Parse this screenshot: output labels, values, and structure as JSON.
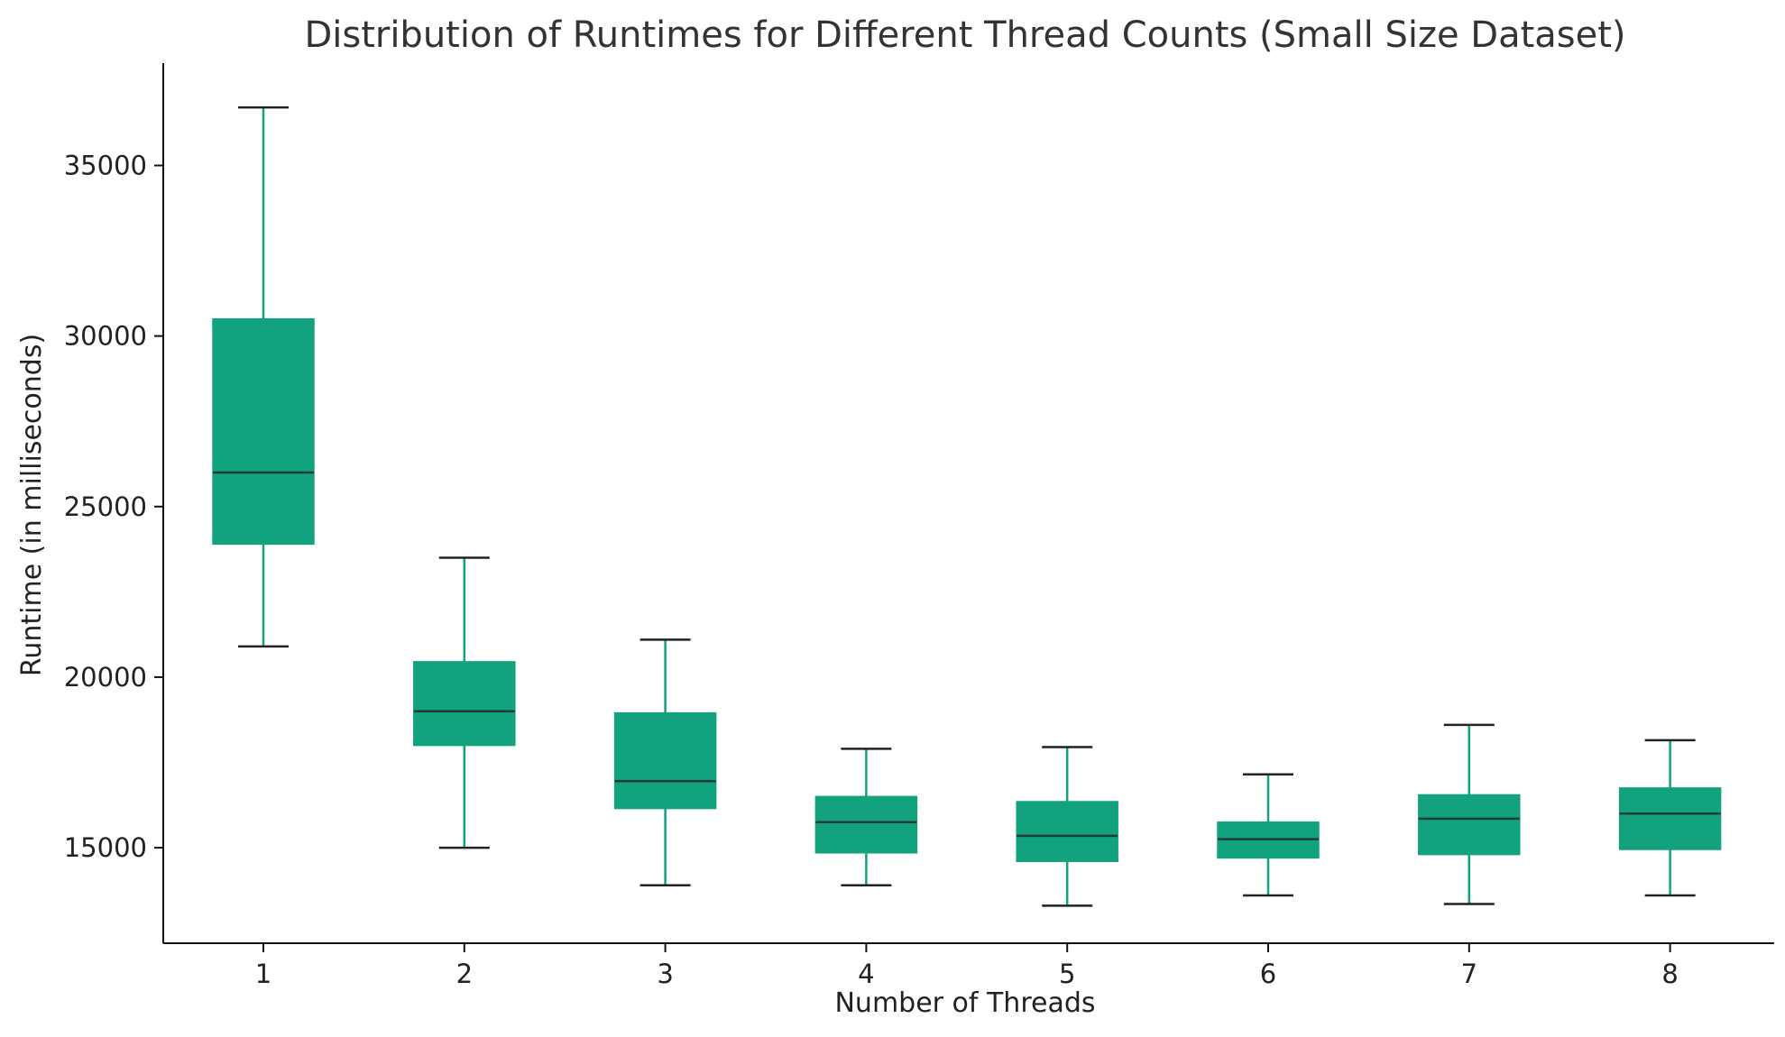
{
  "chart_data": {
    "type": "box",
    "title": "Distribution of Runtimes for Different Thread Counts (Small Size Dataset)",
    "xlabel": "Number of Threads",
    "ylabel": "Runtime (in milliseconds)",
    "ylim": [
      12200,
      38000
    ],
    "yticks": [
      15000,
      20000,
      25000,
      30000,
      35000
    ],
    "grid": false,
    "box_color": "#12a37e",
    "median_color": "#1e3a34",
    "whisker_color": "#12a37e",
    "cap_color": "#222222",
    "categories": [
      "1",
      "2",
      "3",
      "4",
      "5",
      "6",
      "7",
      "8"
    ],
    "boxes": [
      {
        "category": "1",
        "whisker_low": 20900,
        "q1": 23900,
        "median": 26000,
        "q3": 30500,
        "whisker_high": 36700
      },
      {
        "category": "2",
        "whisker_low": 15000,
        "q1": 18000,
        "median": 19000,
        "q3": 20450,
        "whisker_high": 23500
      },
      {
        "category": "3",
        "whisker_low": 13900,
        "q1": 16150,
        "median": 16950,
        "q3": 18950,
        "whisker_high": 21100
      },
      {
        "category": "4",
        "whisker_low": 13900,
        "q1": 14850,
        "median": 15750,
        "q3": 16500,
        "whisker_high": 17900
      },
      {
        "category": "5",
        "whisker_low": 13300,
        "q1": 14600,
        "median": 15350,
        "q3": 16350,
        "whisker_high": 17950
      },
      {
        "category": "6",
        "whisker_low": 13600,
        "q1": 14700,
        "median": 15250,
        "q3": 15750,
        "whisker_high": 17150
      },
      {
        "category": "7",
        "whisker_low": 13350,
        "q1": 14800,
        "median": 15850,
        "q3": 16550,
        "whisker_high": 18600
      },
      {
        "category": "8",
        "whisker_low": 13600,
        "q1": 14950,
        "median": 16000,
        "q3": 16750,
        "whisker_high": 18150
      }
    ]
  }
}
